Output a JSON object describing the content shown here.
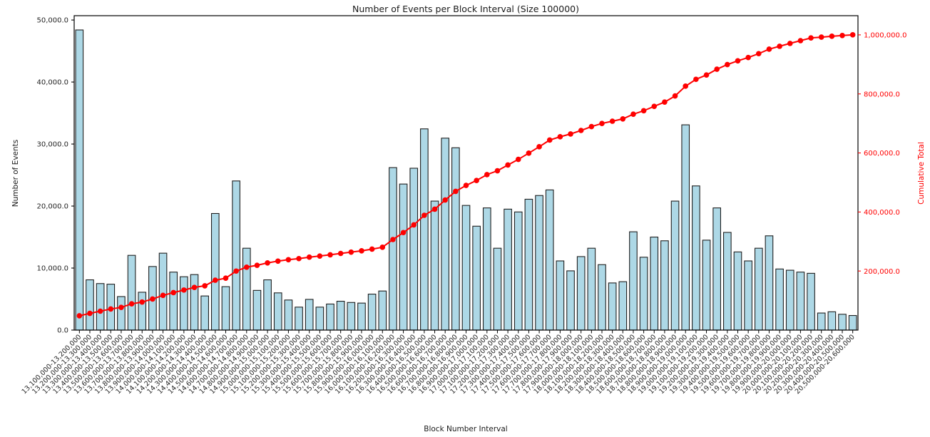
{
  "colors": {
    "bar_fill": "#add8e6",
    "bar_edge": "#1f1f1f",
    "line": "#ff0000",
    "right_axis_text": "#ff0000",
    "axis_text": "#262626",
    "spine": "#000000",
    "background": "#ffffff"
  },
  "chart_data": {
    "type": "bar",
    "title": "Number of Events per Block Interval (Size 100000)",
    "xlabel": "Block Number Interval",
    "ylabel_left": "Number of Events",
    "ylabel_right": "Cumulative Total",
    "grid": false,
    "legend": "none",
    "ylim_left": [
      0,
      50700
    ],
    "ylim_right": [
      0,
      1065000
    ],
    "y_left_ticks": [
      {
        "value": 0,
        "label": "0.0"
      },
      {
        "value": 10000,
        "label": "10,000.0"
      },
      {
        "value": 20000,
        "label": "20,000.0"
      },
      {
        "value": 30000,
        "label": "30,000.0"
      },
      {
        "value": 40000,
        "label": "40,000.0"
      },
      {
        "value": 50000,
        "label": "50,000.0"
      }
    ],
    "y_right_ticks": [
      {
        "value": 200000,
        "label": "200,000.0"
      },
      {
        "value": 400000,
        "label": "400,000.0"
      },
      {
        "value": 600000,
        "label": "600,000.0"
      },
      {
        "value": 800000,
        "label": "800,000.0"
      },
      {
        "value": 1000000,
        "label": "1,000,000.0"
      }
    ],
    "categories": [
      "13,100,000-13,200,000",
      "13,200,000-13,300,000",
      "13,300,000-13,400,000",
      "13,400,000-13,500,000",
      "13,500,000-13,600,000",
      "13,600,000-13,700,000",
      "13,700,000-13,800,000",
      "13,800,000-13,900,000",
      "13,900,000-14,000,000",
      "14,000,000-14,100,000",
      "14,100,000-14,200,000",
      "14,200,000-14,300,000",
      "14,300,000-14,400,000",
      "14,400,000-14,500,000",
      "14,500,000-14,600,000",
      "14,600,000-14,700,000",
      "14,700,000-14,800,000",
      "14,800,000-14,900,000",
      "14,900,000-15,000,000",
      "15,000,000-15,100,000",
      "15,100,000-15,200,000",
      "15,200,000-15,300,000",
      "15,300,000-15,400,000",
      "15,400,000-15,500,000",
      "15,500,000-15,600,000",
      "15,600,000-15,700,000",
      "15,700,000-15,800,000",
      "15,800,000-15,900,000",
      "15,900,000-16,000,000",
      "16,000,000-16,100,000",
      "16,100,000-16,200,000",
      "16,200,000-16,300,000",
      "16,300,000-16,400,000",
      "16,400,000-16,500,000",
      "16,500,000-16,600,000",
      "16,600,000-16,700,000",
      "16,700,000-16,800,000",
      "16,800,000-16,900,000",
      "16,900,000-17,000,000",
      "17,000,000-17,100,000",
      "17,100,000-17,200,000",
      "17,200,000-17,300,000",
      "17,300,000-17,400,000",
      "17,400,000-17,500,000",
      "17,500,000-17,600,000",
      "17,600,000-17,700,000",
      "17,700,000-17,800,000",
      "17,800,000-17,900,000",
      "17,900,000-18,000,000",
      "18,000,000-18,100,000",
      "18,100,000-18,200,000",
      "18,200,000-18,300,000",
      "18,300,000-18,400,000",
      "18,400,000-18,500,000",
      "18,500,000-18,600,000",
      "18,600,000-18,700,000",
      "18,700,000-18,800,000",
      "18,800,000-18,900,000",
      "18,900,000-19,000,000",
      "19,000,000-19,100,000",
      "19,100,000-19,200,000",
      "19,200,000-19,300,000",
      "19,300,000-19,400,000",
      "19,400,000-19,500,000",
      "19,500,000-19,600,000",
      "19,600,000-19,700,000",
      "19,700,000-19,800,000",
      "19,800,000-19,900,000",
      "19,900,000-20,000,000",
      "20,000,000-20,100,000",
      "20,100,000-20,200,000",
      "20,200,000-20,300,000",
      "20,300,000-20,400,000",
      "20,400,000-20,500,000",
      "20,500,000-20,600,000"
    ],
    "series": [
      {
        "name": "Number of Events",
        "type": "bar",
        "axis": "left",
        "color": "#add8e6",
        "values": [
          48400,
          8100,
          7500,
          7400,
          5400,
          12050,
          6100,
          10250,
          12400,
          9350,
          8600,
          8950,
          5500,
          18800,
          7000,
          24050,
          13200,
          6400,
          8100,
          6000,
          4850,
          3700,
          4950,
          3700,
          4200,
          4650,
          4450,
          4350,
          5800,
          6300,
          26200,
          23550,
          26100,
          32450,
          20800,
          30950,
          29400,
          20100,
          16750,
          19700,
          13200,
          19500,
          19050,
          21100,
          21700,
          22600,
          11150,
          9550,
          11850,
          13200,
          10550,
          7600,
          7800,
          15850,
          11750,
          15000,
          14400,
          20800,
          33100,
          23250,
          14500,
          19700,
          15750,
          12600,
          11150,
          13200,
          15200,
          9850,
          9650,
          9350,
          9150,
          2750,
          2950,
          2550,
          2350
        ]
      },
      {
        "name": "Cumulative Total",
        "type": "line",
        "axis": "right",
        "color": "#ff0000",
        "marker": "circle",
        "values": [
          48400,
          56500,
          64000,
          71400,
          76800,
          88850,
          94950,
          105200,
          117600,
          126950,
          135550,
          144500,
          150000,
          168800,
          175800,
          199850,
          213050,
          219450,
          227550,
          233550,
          238400,
          242100,
          247050,
          250750,
          254950,
          259600,
          264050,
          268400,
          274200,
          280500,
          306700,
          330250,
          356350,
          388800,
          409600,
          440550,
          469950,
          490050,
          506800,
          526500,
          539700,
          559200,
          578250,
          599350,
          621050,
          643650,
          654800,
          664350,
          676200,
          689400,
          699950,
          707550,
          715350,
          731200,
          742950,
          757950,
          772350,
          793150,
          826250,
          849500,
          864000,
          883700,
          899450,
          912050,
          923200,
          936400,
          951600,
          961450,
          971100,
          980450,
          989600,
          992350,
          995300,
          997850,
          1000200
        ]
      }
    ]
  }
}
